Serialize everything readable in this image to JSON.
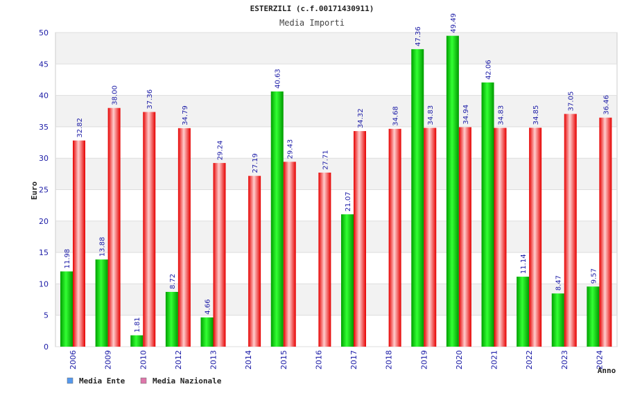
{
  "chart_data": {
    "type": "bar",
    "title": "ESTERZILI (c.f.00171430911)",
    "subtitle": "Media Importi",
    "ylabel": "Euro",
    "xlabel": "Anno",
    "ylim": [
      0,
      50
    ],
    "yticks": [
      0,
      5,
      10,
      15,
      20,
      25,
      30,
      35,
      40,
      45,
      50
    ],
    "grid": true,
    "legend_position": "bottom-left",
    "categories": [
      "2006",
      "2009",
      "2010",
      "2012",
      "2013",
      "2014",
      "2015",
      "2016",
      "2017",
      "2018",
      "2019",
      "2020",
      "2021",
      "2022",
      "2023",
      "2024"
    ],
    "series": [
      {
        "name": "Media Ente",
        "color": "#00cc00",
        "legend_color": "#5599ee",
        "values": [
          11.98,
          13.88,
          1.81,
          8.72,
          4.66,
          null,
          40.63,
          null,
          21.07,
          null,
          47.36,
          49.49,
          42.06,
          11.14,
          8.47,
          9.57
        ],
        "labels": [
          "11.98",
          "13.88",
          "1.81",
          "8.72",
          "4.66",
          null,
          "40.63",
          null,
          "21.07",
          null,
          "47.36",
          "49.49",
          "42.06",
          "11.14",
          "8.47",
          "9.57"
        ]
      },
      {
        "name": "Media Nazionale",
        "color": "#ee2222",
        "legend_color": "#dd77aa",
        "values": [
          32.82,
          38.0,
          37.36,
          34.79,
          29.24,
          27.19,
          29.43,
          27.71,
          34.32,
          34.68,
          34.83,
          34.94,
          34.83,
          34.85,
          37.05,
          36.46
        ],
        "labels": [
          "32.82",
          "38.00",
          "37.36",
          "34.79",
          "29.24",
          "27.19",
          "29.43",
          "27.71",
          "34.32",
          "34.68",
          "34.83",
          "34.94",
          "34.83",
          "34.85",
          "37.05",
          "36.46"
        ]
      }
    ]
  },
  "colors": {
    "title": "#222222",
    "subtitle": "#444444",
    "tick_label": "#1a1aa6",
    "data_label": "#1a1aa6",
    "band": "#f2f2f2",
    "grid": "#dddddd"
  }
}
